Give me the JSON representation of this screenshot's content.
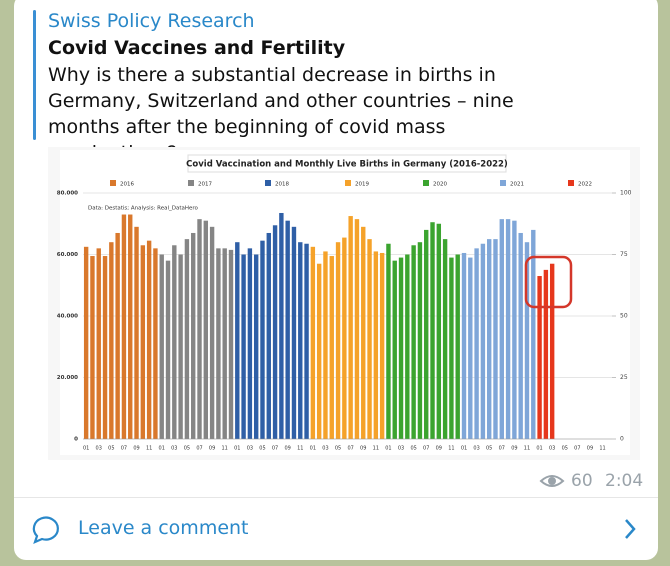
{
  "post": {
    "channel": "Swiss Policy Research",
    "title": "Covid Vaccines and Fertility",
    "text": "Why is there a substantial decrease in births in Germany, Switzerland and other countries – nine months after the beginning of covid mass vaccinations?",
    "views": 60,
    "time": "2:04",
    "comment_button": "Leave a comment"
  },
  "chart_data": {
    "type": "bar",
    "title": "Covid Vaccination and Monthly Live Births in Germany (2016-2022)",
    "annotation": "Data: Destatis; Analysis: Real_DataHero",
    "categories": [
      "01",
      null,
      "03",
      null,
      "05",
      null,
      "07",
      null,
      "09",
      null,
      "11",
      null
    ],
    "series": [
      {
        "name": "2016",
        "color": "#d9782c",
        "values": [
          62500,
          59500,
          62000,
          59500,
          64000,
          67000,
          73000,
          73000,
          69000,
          63000,
          64500,
          62000
        ]
      },
      {
        "name": "2017",
        "color": "#858585",
        "values": [
          60000,
          58000,
          63000,
          60000,
          65000,
          67000,
          71500,
          71000,
          69000,
          62000,
          62000,
          61500
        ]
      },
      {
        "name": "2018",
        "color": "#2f5fa6",
        "values": [
          64000,
          60000,
          62000,
          60000,
          64500,
          67000,
          69500,
          73500,
          71000,
          69000,
          64000,
          63500
        ]
      },
      {
        "name": "2019",
        "color": "#f5a22a",
        "values": [
          62500,
          57000,
          61000,
          59500,
          64000,
          65500,
          72500,
          71500,
          69000,
          65000,
          61000,
          60500
        ]
      },
      {
        "name": "2020",
        "color": "#3ba42f",
        "values": [
          63500,
          58000,
          59000,
          60000,
          63000,
          64000,
          68000,
          70500,
          70000,
          65000,
          59000,
          60000
        ]
      },
      {
        "name": "2021",
        "color": "#7fa6d8",
        "values": [
          60500,
          59000,
          62000,
          63500,
          65000,
          65000,
          71500,
          71500,
          71000,
          67000,
          64000,
          68000
        ]
      },
      {
        "name": "2022",
        "color": "#e6371c",
        "values": [
          53000,
          55000,
          57000,
          null,
          null,
          null,
          null,
          null,
          null,
          null,
          null,
          null
        ]
      }
    ],
    "ylim": [
      0,
      80000
    ],
    "yticks": [
      0,
      {
        "value": 20000,
        "label": "20.000"
      },
      {
        "value": 40000,
        "label": "40.000"
      },
      {
        "value": 60000,
        "label": "60.000"
      },
      {
        "value": 80000,
        "label": "80.000"
      }
    ],
    "y2lim": [
      0,
      100
    ],
    "y2ticks": [
      0,
      25,
      50,
      75,
      100
    ],
    "grid": true
  }
}
